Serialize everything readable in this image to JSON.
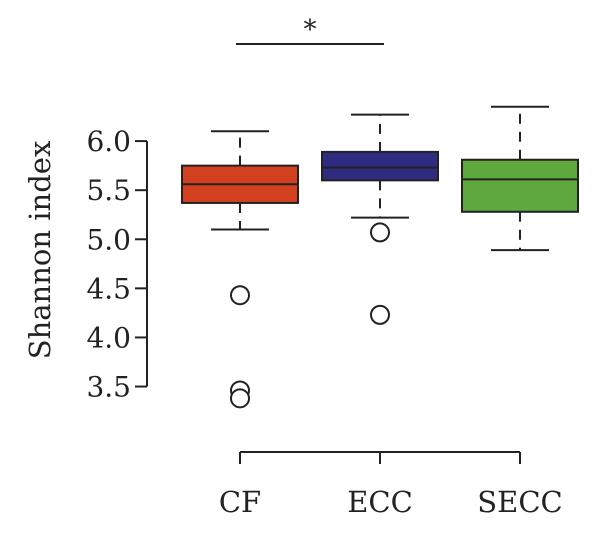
{
  "chart_data": {
    "type": "box",
    "ylabel": "Shannon index",
    "xlabel": "",
    "ylim": [
      3.2,
      6.5
    ],
    "yticks": [
      3.5,
      4.0,
      4.5,
      5.0,
      5.5,
      6.0
    ],
    "ytick_labels": [
      "3.5",
      "4.0",
      "4.5",
      "5.0",
      "5.5",
      "6.0"
    ],
    "categories": [
      "CF",
      "ECC",
      "SECC"
    ],
    "colors": [
      "#d2401f",
      "#2e2b80",
      "#5fa83e"
    ],
    "boxes": [
      {
        "category": "CF",
        "whisker_low": 5.1,
        "q1": 5.37,
        "median": 5.56,
        "q3": 5.75,
        "whisker_high": 6.1,
        "outliers": [
          4.43,
          3.46,
          3.38
        ]
      },
      {
        "category": "ECC",
        "whisker_low": 5.22,
        "q1": 5.6,
        "median": 5.73,
        "q3": 5.89,
        "whisker_high": 6.27,
        "outliers": [
          5.07,
          4.23
        ]
      },
      {
        "category": "SECC",
        "whisker_low": 4.89,
        "q1": 5.28,
        "median": 5.61,
        "q3": 5.81,
        "whisker_high": 6.35,
        "outliers": []
      }
    ],
    "significance": [
      {
        "from": "CF",
        "to": "ECC",
        "label": "*"
      }
    ],
    "grid": false,
    "legend": "none"
  }
}
